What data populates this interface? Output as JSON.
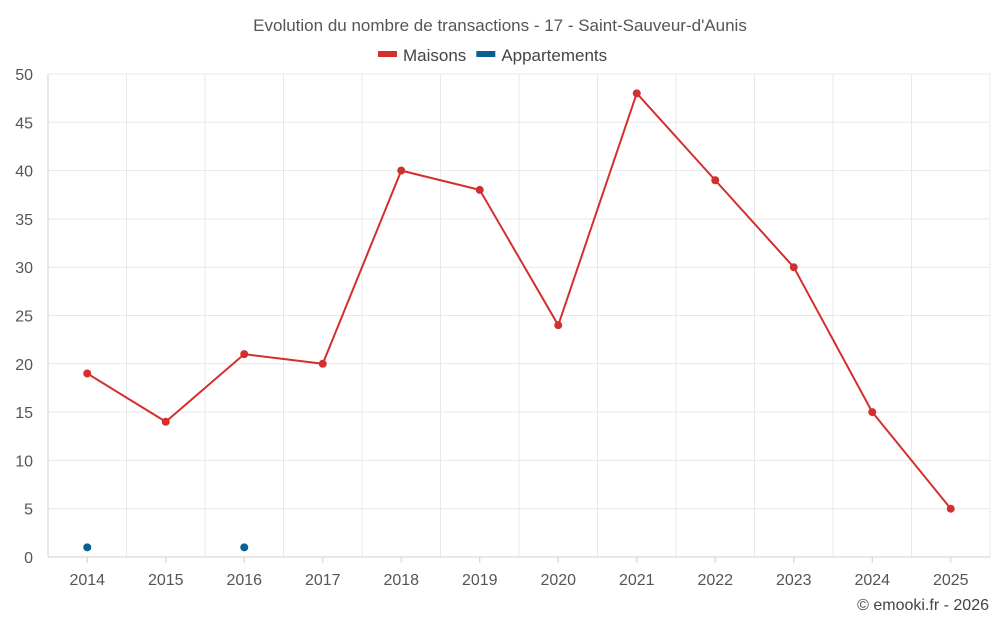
{
  "chart_data": {
    "type": "line",
    "title": "Evolution du nombre de transactions - 17 - Saint-Sauveur-d'Aunis",
    "categories": [
      "2014",
      "2015",
      "2016",
      "2017",
      "2018",
      "2019",
      "2020",
      "2021",
      "2022",
      "2023",
      "2024",
      "2025"
    ],
    "series": [
      {
        "name": "Maisons",
        "color": "#d32f2f",
        "line": true,
        "values": [
          19,
          14,
          21,
          20,
          40,
          38,
          24,
          48,
          39,
          30,
          15,
          5
        ]
      },
      {
        "name": "Appartements",
        "color": "#0b6095",
        "line": false,
        "values": [
          1,
          null,
          1,
          null,
          null,
          null,
          null,
          null,
          null,
          null,
          null,
          null
        ]
      }
    ],
    "ylim": [
      0,
      50
    ],
    "yticks": [
      0,
      5,
      10,
      15,
      20,
      25,
      30,
      35,
      40,
      45,
      50
    ],
    "xlabel": "",
    "ylabel": "",
    "grid": true,
    "legend_position": "top-center"
  },
  "credit": "© emooki.fr - 2026"
}
